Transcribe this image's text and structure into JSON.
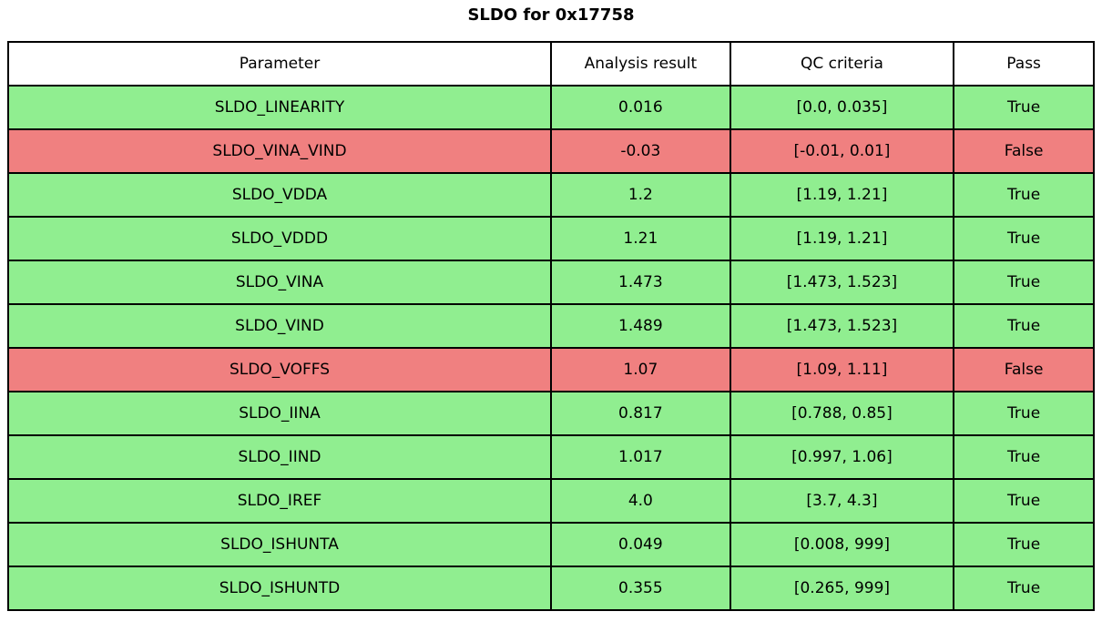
{
  "title": "SLDO for 0x17758",
  "colors": {
    "pass_row": "#90ee90",
    "fail_row": "#f08080",
    "header_bg": "#ffffff",
    "border": "#000000",
    "text": "#000000"
  },
  "table": {
    "columns": [
      "Parameter",
      "Analysis result",
      "QC criteria",
      "Pass"
    ],
    "column_widths_pct": [
      50.0,
      16.5,
      20.6,
      12.9
    ],
    "rows": [
      {
        "parameter": "SLDO_LINEARITY",
        "result": "0.016",
        "criteria": "[0.0, 0.035]",
        "pass": "True",
        "status": "pass"
      },
      {
        "parameter": "SLDO_VINA_VIND",
        "result": "-0.03",
        "criteria": "[-0.01, 0.01]",
        "pass": "False",
        "status": "fail"
      },
      {
        "parameter": "SLDO_VDDA",
        "result": "1.2",
        "criteria": "[1.19, 1.21]",
        "pass": "True",
        "status": "pass"
      },
      {
        "parameter": "SLDO_VDDD",
        "result": "1.21",
        "criteria": "[1.19, 1.21]",
        "pass": "True",
        "status": "pass"
      },
      {
        "parameter": "SLDO_VINA",
        "result": "1.473",
        "criteria": "[1.473, 1.523]",
        "pass": "True",
        "status": "pass"
      },
      {
        "parameter": "SLDO_VIND",
        "result": "1.489",
        "criteria": "[1.473, 1.523]",
        "pass": "True",
        "status": "pass"
      },
      {
        "parameter": "SLDO_VOFFS",
        "result": "1.07",
        "criteria": "[1.09, 1.11]",
        "pass": "False",
        "status": "fail"
      },
      {
        "parameter": "SLDO_IINA",
        "result": "0.817",
        "criteria": "[0.788, 0.85]",
        "pass": "True",
        "status": "pass"
      },
      {
        "parameter": "SLDO_IIND",
        "result": "1.017",
        "criteria": "[0.997, 1.06]",
        "pass": "True",
        "status": "pass"
      },
      {
        "parameter": "SLDO_IREF",
        "result": "4.0",
        "criteria": "[3.7, 4.3]",
        "pass": "True",
        "status": "pass"
      },
      {
        "parameter": "SLDO_ISHUNTA",
        "result": "0.049",
        "criteria": "[0.008, 999]",
        "pass": "True",
        "status": "pass"
      },
      {
        "parameter": "SLDO_ISHUNTD",
        "result": "0.355",
        "criteria": "[0.265, 999]",
        "pass": "True",
        "status": "pass"
      }
    ]
  }
}
